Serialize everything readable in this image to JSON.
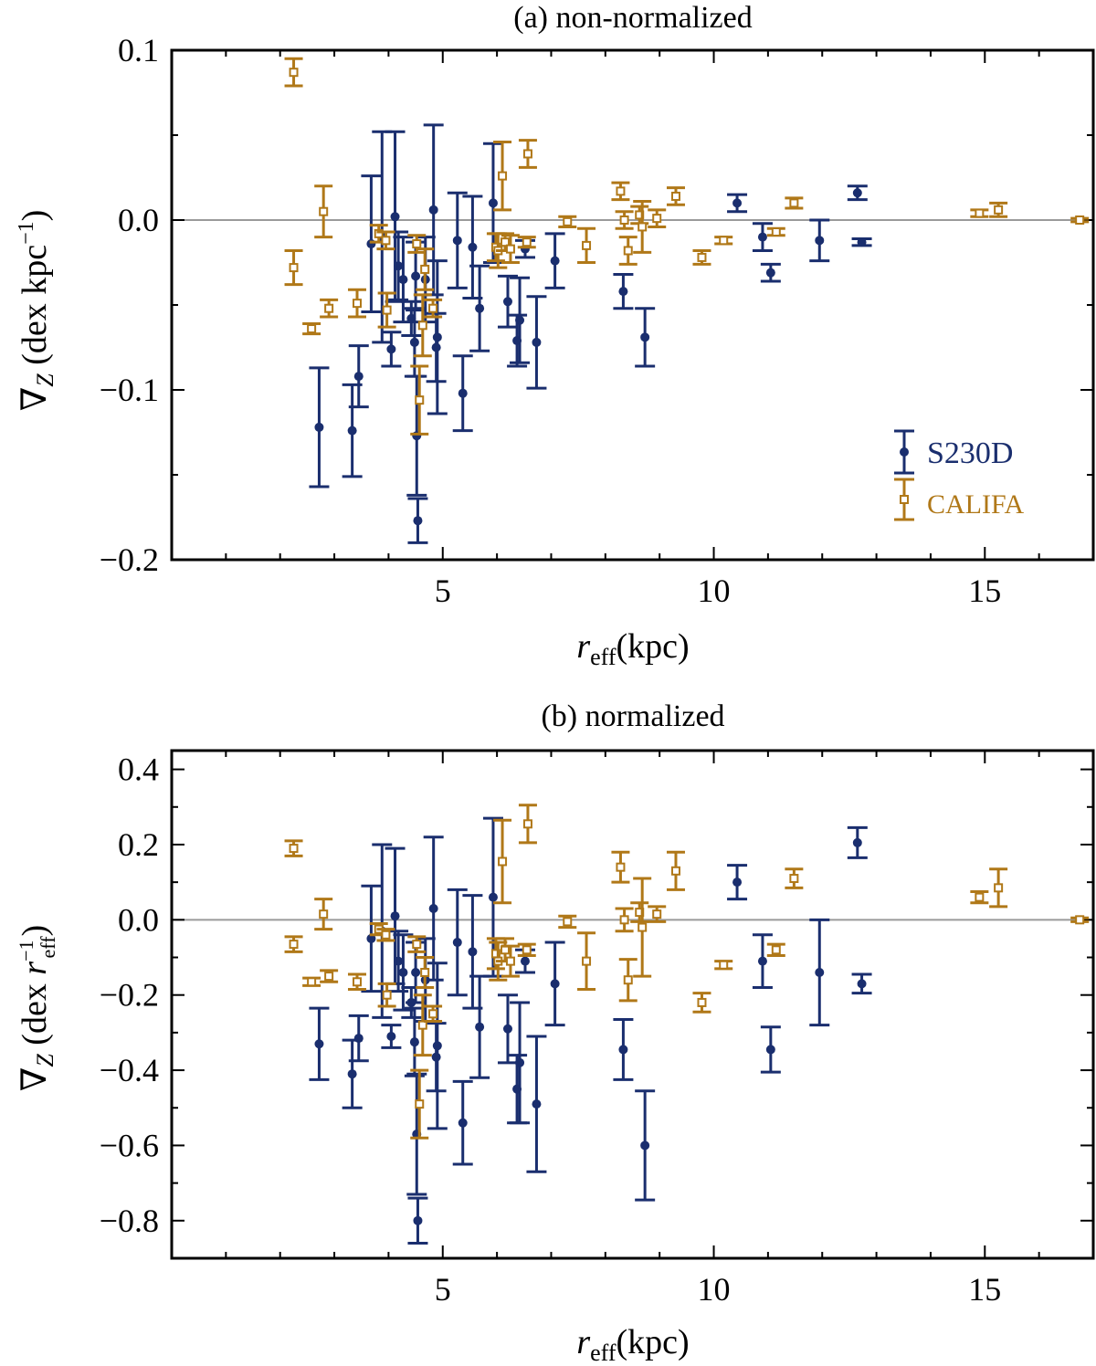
{
  "colors": {
    "s230d": "#1a2e6e",
    "califa": "#b07818",
    "zero_line": "#9a9a9a",
    "axes": "#000000"
  },
  "legend": {
    "s230d_label": "S230D",
    "califa_label": "CALIFA"
  },
  "chart_data": [
    {
      "type": "scatter",
      "title": "(a) non-normalized",
      "xlabel": "r_eff(kpc)",
      "ylabel": "∇Z (dex kpc⁻¹)",
      "xlim": [
        0,
        17
      ],
      "ylim": [
        -0.2,
        0.1
      ],
      "xticks": [
        5,
        10,
        15
      ],
      "yticks": [
        0.1,
        0.0,
        -0.1,
        -0.2
      ],
      "ytick_labels": [
        "0.1",
        "0.0",
        "−0.1",
        "−0.2"
      ],
      "xtick_labels": [
        "5",
        "10",
        "15"
      ],
      "zero_line": true,
      "series": [
        {
          "name": "S230D",
          "marker": "filled-circle",
          "points": [
            {
              "x": 2.72,
              "y": -0.122,
              "yerr": 0.035
            },
            {
              "x": 3.33,
              "y": -0.124,
              "yerr": 0.027
            },
            {
              "x": 3.45,
              "y": -0.092,
              "yerr": 0.018
            },
            {
              "x": 3.68,
              "y": -0.014,
              "yerr": 0.04
            },
            {
              "x": 3.88,
              "y": -0.01,
              "yerr": 0.062
            },
            {
              "x": 4.05,
              "y": -0.076,
              "yerr": 0.01
            },
            {
              "x": 4.12,
              "y": 0.002,
              "yerr": 0.05
            },
            {
              "x": 4.18,
              "y": -0.027,
              "yerr": 0.02
            },
            {
              "x": 4.27,
              "y": -0.035,
              "yerr": 0.025
            },
            {
              "x": 4.42,
              "y": -0.058,
              "yerr": 0.01
            },
            {
              "x": 4.48,
              "y": -0.072,
              "yerr": 0.02
            },
            {
              "x": 4.5,
              "y": -0.033,
              "yerr": 0.02
            },
            {
              "x": 4.52,
              "y": -0.127,
              "yerr": 0.035
            },
            {
              "x": 4.54,
              "y": -0.177,
              "yerr": 0.013
            },
            {
              "x": 4.68,
              "y": -0.035,
              "yerr": 0.025
            },
            {
              "x": 4.83,
              "y": 0.006,
              "yerr": 0.05
            },
            {
              "x": 4.88,
              "y": -0.075,
              "yerr": 0.02
            },
            {
              "x": 4.9,
              "y": -0.069,
              "yerr": 0.045
            },
            {
              "x": 5.27,
              "y": -0.012,
              "yerr": 0.028
            },
            {
              "x": 5.37,
              "y": -0.102,
              "yerr": 0.022
            },
            {
              "x": 5.55,
              "y": -0.016,
              "yerr": 0.03
            },
            {
              "x": 5.68,
              "y": -0.052,
              "yerr": 0.025
            },
            {
              "x": 5.93,
              "y": 0.01,
              "yerr": 0.035
            },
            {
              "x": 6.2,
              "y": -0.048,
              "yerr": 0.015
            },
            {
              "x": 6.37,
              "y": -0.071,
              "yerr": 0.015
            },
            {
              "x": 6.42,
              "y": -0.059,
              "yerr": 0.025
            },
            {
              "x": 6.52,
              "y": -0.017,
              "yerr": 0.005
            },
            {
              "x": 6.73,
              "y": -0.072,
              "yerr": 0.027
            },
            {
              "x": 7.07,
              "y": -0.024,
              "yerr": 0.016
            },
            {
              "x": 8.33,
              "y": -0.042,
              "yerr": 0.01
            },
            {
              "x": 8.73,
              "y": -0.069,
              "yerr": 0.017
            },
            {
              "x": 10.43,
              "y": 0.01,
              "yerr": 0.005
            },
            {
              "x": 10.9,
              "y": -0.01,
              "yerr": 0.008
            },
            {
              "x": 11.05,
              "y": -0.031,
              "yerr": 0.005
            },
            {
              "x": 11.95,
              "y": -0.012,
              "yerr": 0.012
            },
            {
              "x": 12.65,
              "y": 0.016,
              "yerr": 0.004
            },
            {
              "x": 12.73,
              "y": -0.013,
              "yerr": 0.002
            }
          ]
        },
        {
          "name": "CALIFA",
          "marker": "open-square",
          "points": [
            {
              "x": 2.25,
              "y": 0.087,
              "yerr": 0.008
            },
            {
              "x": 2.25,
              "y": -0.028,
              "yerr": 0.01
            },
            {
              "x": 2.58,
              "y": -0.064,
              "yerr": 0.003
            },
            {
              "x": 2.8,
              "y": 0.005,
              "yerr": 0.015
            },
            {
              "x": 2.9,
              "y": -0.052,
              "yerr": 0.005
            },
            {
              "x": 3.42,
              "y": -0.049,
              "yerr": 0.008
            },
            {
              "x": 3.82,
              "y": -0.008,
              "yerr": 0.005
            },
            {
              "x": 3.95,
              "y": -0.012,
              "yerr": 0.005
            },
            {
              "x": 3.97,
              "y": -0.053,
              "yerr": 0.01
            },
            {
              "x": 4.52,
              "y": -0.014,
              "yerr": 0.005
            },
            {
              "x": 4.57,
              "y": -0.106,
              "yerr": 0.02
            },
            {
              "x": 4.63,
              "y": -0.062,
              "yerr": 0.018
            },
            {
              "x": 4.67,
              "y": -0.029,
              "yerr": 0.012
            },
            {
              "x": 4.82,
              "y": -0.052,
              "yerr": 0.005
            },
            {
              "x": 5.98,
              "y": -0.016,
              "yerr": 0.008
            },
            {
              "x": 6.02,
              "y": -0.018,
              "yerr": 0.01
            },
            {
              "x": 6.1,
              "y": 0.026,
              "yerr": 0.02
            },
            {
              "x": 6.15,
              "y": -0.013,
              "yerr": 0.005
            },
            {
              "x": 6.25,
              "y": -0.017,
              "yerr": 0.008
            },
            {
              "x": 6.55,
              "y": -0.013,
              "yerr": 0.003
            },
            {
              "x": 6.57,
              "y": 0.039,
              "yerr": 0.008
            },
            {
              "x": 7.3,
              "y": -0.001,
              "yerr": 0.003
            },
            {
              "x": 7.65,
              "y": -0.015,
              "yerr": 0.01
            },
            {
              "x": 8.28,
              "y": 0.017,
              "yerr": 0.005
            },
            {
              "x": 8.35,
              "y": 0.0,
              "yerr": 0.005
            },
            {
              "x": 8.42,
              "y": -0.018,
              "yerr": 0.008
            },
            {
              "x": 8.63,
              "y": 0.003,
              "yerr": 0.005
            },
            {
              "x": 8.68,
              "y": -0.004,
              "yerr": 0.015
            },
            {
              "x": 8.95,
              "y": 0.001,
              "yerr": 0.005
            },
            {
              "x": 9.3,
              "y": 0.014,
              "yerr": 0.005
            },
            {
              "x": 9.78,
              "y": -0.022,
              "yerr": 0.004
            },
            {
              "x": 10.18,
              "y": -0.012,
              "yerr": 0.002
            },
            {
              "x": 11.15,
              "y": -0.007,
              "yerr": 0.002
            },
            {
              "x": 11.48,
              "y": 0.01,
              "yerr": 0.003
            },
            {
              "x": 14.9,
              "y": 0.004,
              "yerr": 0.002
            },
            {
              "x": 15.25,
              "y": 0.006,
              "yerr": 0.004
            },
            {
              "x": 16.75,
              "y": 0.0,
              "yerr": 0.001
            }
          ]
        }
      ]
    },
    {
      "type": "scatter",
      "title": "(b) normalized",
      "xlabel": "r_eff(kpc)",
      "ylabel": "∇Z (dex r_eff⁻¹)",
      "xlim": [
        0,
        17
      ],
      "ylim": [
        -0.9,
        0.45
      ],
      "xticks": [
        5,
        10,
        15
      ],
      "yticks": [
        0.4,
        0.2,
        0.0,
        -0.2,
        -0.4,
        -0.6,
        -0.8
      ],
      "ytick_labels": [
        "0.4",
        "0.2",
        "0.0",
        "−0.2",
        "−0.4",
        "−0.6",
        "−0.8"
      ],
      "xtick_labels": [
        "5",
        "10",
        "15"
      ],
      "zero_line": true,
      "series": [
        {
          "name": "S230D",
          "marker": "filled-circle",
          "points": [
            {
              "x": 2.72,
              "y": -0.33,
              "yerr": 0.095
            },
            {
              "x": 3.33,
              "y": -0.41,
              "yerr": 0.09
            },
            {
              "x": 3.45,
              "y": -0.315,
              "yerr": 0.06
            },
            {
              "x": 3.68,
              "y": -0.05,
              "yerr": 0.14
            },
            {
              "x": 3.88,
              "y": -0.03,
              "yerr": 0.23
            },
            {
              "x": 4.05,
              "y": -0.31,
              "yerr": 0.03
            },
            {
              "x": 4.12,
              "y": 0.01,
              "yerr": 0.18
            },
            {
              "x": 4.18,
              "y": -0.11,
              "yerr": 0.08
            },
            {
              "x": 4.27,
              "y": -0.14,
              "yerr": 0.1
            },
            {
              "x": 4.42,
              "y": -0.22,
              "yerr": 0.04
            },
            {
              "x": 4.48,
              "y": -0.325,
              "yerr": 0.09
            },
            {
              "x": 4.5,
              "y": -0.14,
              "yerr": 0.08
            },
            {
              "x": 4.52,
              "y": -0.57,
              "yerr": 0.16
            },
            {
              "x": 4.54,
              "y": -0.8,
              "yerr": 0.06
            },
            {
              "x": 4.68,
              "y": -0.16,
              "yerr": 0.11
            },
            {
              "x": 4.83,
              "y": 0.03,
              "yerr": 0.19
            },
            {
              "x": 4.88,
              "y": -0.365,
              "yerr": 0.09
            },
            {
              "x": 4.9,
              "y": -0.335,
              "yerr": 0.22
            },
            {
              "x": 5.27,
              "y": -0.06,
              "yerr": 0.14
            },
            {
              "x": 5.37,
              "y": -0.54,
              "yerr": 0.11
            },
            {
              "x": 5.55,
              "y": -0.085,
              "yerr": 0.15
            },
            {
              "x": 5.68,
              "y": -0.285,
              "yerr": 0.135
            },
            {
              "x": 5.93,
              "y": 0.06,
              "yerr": 0.21
            },
            {
              "x": 6.2,
              "y": -0.29,
              "yerr": 0.09
            },
            {
              "x": 6.37,
              "y": -0.45,
              "yerr": 0.09
            },
            {
              "x": 6.42,
              "y": -0.38,
              "yerr": 0.16
            },
            {
              "x": 6.52,
              "y": -0.11,
              "yerr": 0.03
            },
            {
              "x": 6.73,
              "y": -0.49,
              "yerr": 0.18
            },
            {
              "x": 7.07,
              "y": -0.17,
              "yerr": 0.11
            },
            {
              "x": 8.33,
              "y": -0.345,
              "yerr": 0.08
            },
            {
              "x": 8.73,
              "y": -0.6,
              "yerr": 0.145
            },
            {
              "x": 10.43,
              "y": 0.1,
              "yerr": 0.045
            },
            {
              "x": 10.9,
              "y": -0.11,
              "yerr": 0.07
            },
            {
              "x": 11.05,
              "y": -0.345,
              "yerr": 0.06
            },
            {
              "x": 11.95,
              "y": -0.14,
              "yerr": 0.14
            },
            {
              "x": 12.65,
              "y": 0.205,
              "yerr": 0.04
            },
            {
              "x": 12.73,
              "y": -0.17,
              "yerr": 0.025
            }
          ]
        },
        {
          "name": "CALIFA",
          "marker": "open-square",
          "points": [
            {
              "x": 2.25,
              "y": 0.19,
              "yerr": 0.02
            },
            {
              "x": 2.25,
              "y": -0.065,
              "yerr": 0.02
            },
            {
              "x": 2.58,
              "y": -0.165,
              "yerr": 0.01
            },
            {
              "x": 2.8,
              "y": 0.015,
              "yerr": 0.04
            },
            {
              "x": 2.9,
              "y": -0.15,
              "yerr": 0.015
            },
            {
              "x": 3.42,
              "y": -0.165,
              "yerr": 0.02
            },
            {
              "x": 3.82,
              "y": -0.025,
              "yerr": 0.015
            },
            {
              "x": 3.95,
              "y": -0.04,
              "yerr": 0.015
            },
            {
              "x": 3.97,
              "y": -0.2,
              "yerr": 0.03
            },
            {
              "x": 4.52,
              "y": -0.065,
              "yerr": 0.02
            },
            {
              "x": 4.57,
              "y": -0.49,
              "yerr": 0.09
            },
            {
              "x": 4.63,
              "y": -0.28,
              "yerr": 0.08
            },
            {
              "x": 4.67,
              "y": -0.14,
              "yerr": 0.04
            },
            {
              "x": 4.82,
              "y": -0.25,
              "yerr": 0.02
            },
            {
              "x": 5.98,
              "y": -0.09,
              "yerr": 0.04
            },
            {
              "x": 6.02,
              "y": -0.11,
              "yerr": 0.05
            },
            {
              "x": 6.1,
              "y": 0.155,
              "yerr": 0.11
            },
            {
              "x": 6.15,
              "y": -0.08,
              "yerr": 0.03
            },
            {
              "x": 6.25,
              "y": -0.11,
              "yerr": 0.04
            },
            {
              "x": 6.55,
              "y": -0.08,
              "yerr": 0.015
            },
            {
              "x": 6.57,
              "y": 0.255,
              "yerr": 0.05
            },
            {
              "x": 7.3,
              "y": -0.005,
              "yerr": 0.015
            },
            {
              "x": 7.65,
              "y": -0.11,
              "yerr": 0.075
            },
            {
              "x": 8.28,
              "y": 0.14,
              "yerr": 0.04
            },
            {
              "x": 8.35,
              "y": 0.0,
              "yerr": 0.03
            },
            {
              "x": 8.42,
              "y": -0.16,
              "yerr": 0.055
            },
            {
              "x": 8.63,
              "y": 0.02,
              "yerr": 0.025
            },
            {
              "x": 8.68,
              "y": -0.02,
              "yerr": 0.13
            },
            {
              "x": 8.95,
              "y": 0.015,
              "yerr": 0.02
            },
            {
              "x": 9.3,
              "y": 0.13,
              "yerr": 0.05
            },
            {
              "x": 9.78,
              "y": -0.22,
              "yerr": 0.025
            },
            {
              "x": 10.18,
              "y": -0.12,
              "yerr": 0.01
            },
            {
              "x": 11.15,
              "y": -0.08,
              "yerr": 0.015
            },
            {
              "x": 11.48,
              "y": 0.11,
              "yerr": 0.025
            },
            {
              "x": 14.9,
              "y": 0.06,
              "yerr": 0.015
            },
            {
              "x": 15.25,
              "y": 0.085,
              "yerr": 0.05
            },
            {
              "x": 16.75,
              "y": 0.0,
              "yerr": 0.005
            }
          ]
        }
      ]
    }
  ]
}
